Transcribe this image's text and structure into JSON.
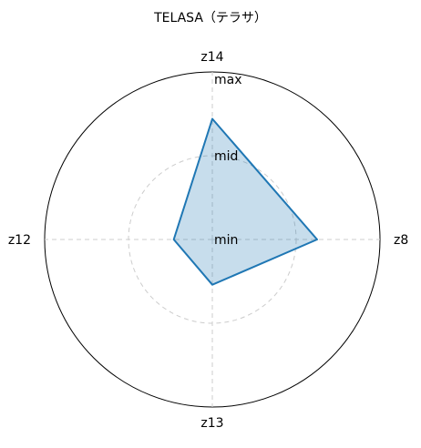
{
  "chart_data": {
    "type": "radar",
    "title": "TELASA（テラサ）",
    "axes": [
      "z14",
      "z8",
      "z13",
      "z12"
    ],
    "series": [
      {
        "values": [
          0.72,
          0.625,
          0.27,
          0.23
        ]
      }
    ],
    "range": [
      0,
      1
    ],
    "ring_labels": [
      {
        "label": "min",
        "value": 0
      },
      {
        "label": "mid",
        "value": 0.5
      },
      {
        "label": "max",
        "value": 1
      }
    ],
    "grid": true,
    "legend": "none",
    "colors": {
      "line": "#1f77b4",
      "fill": "#1f77b4",
      "grid": "#cccccc",
      "frame": "#000000"
    }
  }
}
